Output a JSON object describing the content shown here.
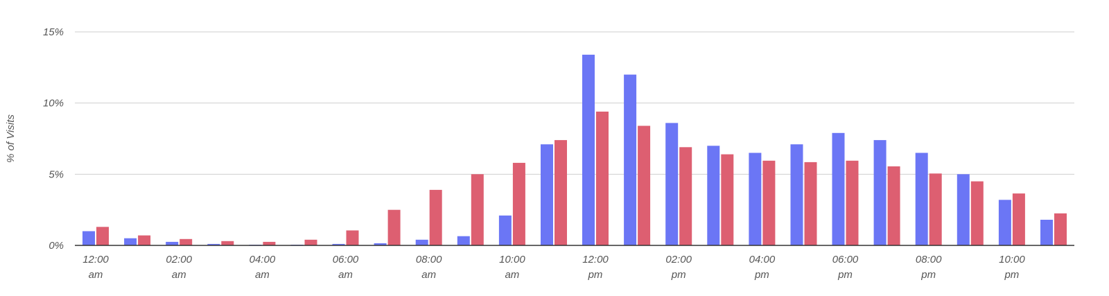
{
  "chart_data": {
    "type": "bar",
    "title": "",
    "xlabel": "",
    "ylabel": "% of Visits",
    "ylim": [
      0,
      15
    ],
    "yticks": [
      "0%",
      "5%",
      "10%",
      "15%"
    ],
    "ytick_values": [
      0,
      5,
      10,
      15
    ],
    "grid": true,
    "legend": "none",
    "categories": [
      "12 am",
      "1 am",
      "2 am",
      "3 am",
      "4 am",
      "5 am",
      "6 am",
      "7 am",
      "8 am",
      "9 am",
      "10 am",
      "11 am",
      "12 pm",
      "1 pm",
      "2 pm",
      "3 pm",
      "4 pm",
      "5 pm",
      "6 pm",
      "7 pm",
      "8 pm",
      "9 pm",
      "10 pm",
      "11 pm"
    ],
    "xtick_labels": [
      {
        "index": 0,
        "time": "12:00",
        "period": "am"
      },
      {
        "index": 2,
        "time": "02:00",
        "period": "am"
      },
      {
        "index": 4,
        "time": "04:00",
        "period": "am"
      },
      {
        "index": 6,
        "time": "06:00",
        "period": "am"
      },
      {
        "index": 8,
        "time": "08:00",
        "period": "am"
      },
      {
        "index": 10,
        "time": "10:00",
        "period": "am"
      },
      {
        "index": 12,
        "time": "12:00",
        "period": "pm"
      },
      {
        "index": 14,
        "time": "02:00",
        "period": "pm"
      },
      {
        "index": 16,
        "time": "04:00",
        "period": "pm"
      },
      {
        "index": 18,
        "time": "06:00",
        "period": "pm"
      },
      {
        "index": 20,
        "time": "08:00",
        "period": "pm"
      },
      {
        "index": 22,
        "time": "10:00",
        "period": "pm"
      }
    ],
    "series": [
      {
        "color": "#6b76f5",
        "values": [
          1.0,
          0.5,
          0.25,
          0.1,
          0.05,
          0.05,
          0.1,
          0.15,
          0.4,
          0.65,
          2.1,
          7.1,
          13.4,
          12.0,
          8.6,
          7.0,
          6.5,
          7.1,
          7.9,
          7.4,
          6.5,
          5.0,
          3.2,
          1.8
        ]
      },
      {
        "color": "#dd5f71",
        "values": [
          1.3,
          0.7,
          0.45,
          0.3,
          0.25,
          0.4,
          1.05,
          2.5,
          3.9,
          5.0,
          5.8,
          7.4,
          9.4,
          8.4,
          6.9,
          6.4,
          5.95,
          5.85,
          5.95,
          5.55,
          5.05,
          4.5,
          3.65,
          2.25
        ]
      }
    ]
  }
}
